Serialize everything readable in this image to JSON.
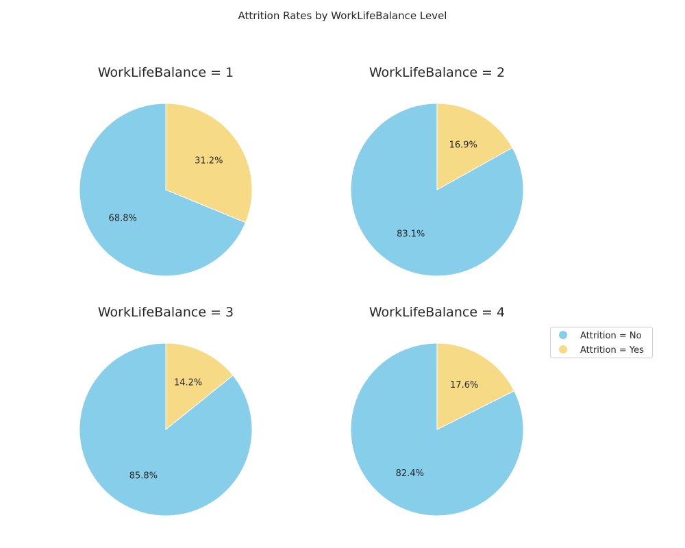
{
  "chart_data": {
    "type": "pie",
    "title": "Attrition Rates by WorkLifeBalance Level",
    "legend": {
      "placement": "right",
      "entries": [
        "Attrition = No",
        "Attrition = Yes"
      ]
    },
    "colors": {
      "no": "#87CEEB",
      "yes": "#F6DA86"
    },
    "start_angle_deg": 90,
    "direction": "clockwise_from_top_for_yes",
    "pies": [
      {
        "title": "WorkLifeBalance = 1",
        "slices": [
          {
            "label": "Attrition = No",
            "value": 68.8,
            "display": "68.8%"
          },
          {
            "label": "Attrition = Yes",
            "value": 31.2,
            "display": "31.2%"
          }
        ]
      },
      {
        "title": "WorkLifeBalance = 2",
        "slices": [
          {
            "label": "Attrition = No",
            "value": 83.1,
            "display": "83.1%"
          },
          {
            "label": "Attrition = Yes",
            "value": 16.9,
            "display": "16.9%"
          }
        ]
      },
      {
        "title": "WorkLifeBalance = 3",
        "slices": [
          {
            "label": "Attrition = No",
            "value": 85.8,
            "display": "85.8%"
          },
          {
            "label": "Attrition = Yes",
            "value": 14.2,
            "display": "14.2%"
          }
        ]
      },
      {
        "title": "WorkLifeBalance = 4",
        "slices": [
          {
            "label": "Attrition = No",
            "value": 82.4,
            "display": "82.4%"
          },
          {
            "label": "Attrition = Yes",
            "value": 17.6,
            "display": "17.6%"
          }
        ]
      }
    ]
  }
}
